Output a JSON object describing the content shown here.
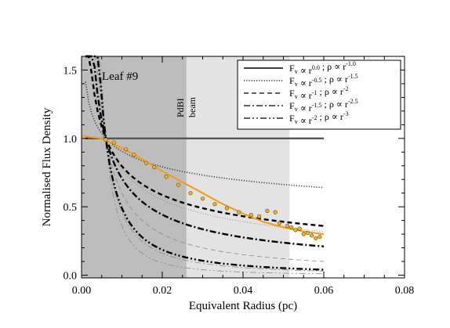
{
  "chart_data": {
    "type": "line",
    "title": "",
    "annotation": "Leaf #9",
    "xlabel": "Equivalent Radius (pc)",
    "ylabel": "Normalised Flux Density",
    "xlim": [
      0.0,
      0.08
    ],
    "ylim": [
      -0.02,
      1.6
    ],
    "xticks": [
      "0.00",
      "0.02",
      "0.04",
      "0.06",
      "0.08"
    ],
    "yticks": [
      "0.0",
      "0.5",
      "1.0",
      "1.5"
    ],
    "legend_position": "top-right",
    "shaded_regions": [
      {
        "label": "",
        "x": [
          0.0,
          0.026
        ],
        "color": "#bdbdbd"
      },
      {
        "label": "PdBI beam",
        "x": [
          0.026,
          0.0515
        ],
        "color": "#e3e3e3"
      }
    ],
    "beam_label": [
      "PdBI",
      "beam"
    ],
    "model_x_range": [
      0.0,
      0.06
    ],
    "series": [
      {
        "name": "F_v ∝ r^0.0 ; ρ ∝ r^-1.0",
        "style": "solid",
        "y_at_end": 1.0,
        "faint_y_at_end": 1.0
      },
      {
        "name": "F_v ∝ r^-0.5 ; ρ ∝ r^-1.5",
        "style": "dotted",
        "y_at_end": 0.64,
        "faint_y_at_end": 0.32
      },
      {
        "name": "F_v ∝ r^-1 ; ρ ∝ r^-2",
        "style": "dashed",
        "y_at_end": 0.36,
        "faint_y_at_end": 0.1
      },
      {
        "name": "F_v ∝ r^-1.5 ; ρ ∝ r^-2.5",
        "style": "dash-dot",
        "y_at_end": 0.21,
        "faint_y_at_end": 0.03
      },
      {
        "name": "F_v ∝ r^-2 ; ρ ∝ r^-3",
        "style": "dash-dot-dot",
        "y_at_end": 0.04,
        "faint_y_at_end": 0.01
      }
    ],
    "legend_entries": [
      {
        "style": "solid",
        "f": "F",
        "f_sub": "v",
        "f_exp": "0.0",
        "rho_exp": "-1.0"
      },
      {
        "style": "dotted",
        "f": "F",
        "f_sub": "v",
        "f_exp": "-0.5",
        "rho_exp": "-1.5"
      },
      {
        "style": "dashed",
        "f": "F",
        "f_sub": "v",
        "f_exp": "-1",
        "rho_exp": "-2"
      },
      {
        "style": "dash-dot",
        "f": "F",
        "f_sub": "v",
        "f_exp": "-1.5",
        "rho_exp": "-2.5"
      },
      {
        "style": "dash-dot-dot",
        "f": "F",
        "f_sub": "v",
        "f_exp": "-2",
        "rho_exp": "-3"
      }
    ],
    "observed_fit": {
      "color": "#f0a020",
      "x": [
        0.0,
        0.005,
        0.01,
        0.015,
        0.02,
        0.025,
        0.03,
        0.035,
        0.04,
        0.045,
        0.05,
        0.055,
        0.06
      ],
      "y": [
        1.02,
        1.0,
        0.93,
        0.85,
        0.76,
        0.68,
        0.6,
        0.52,
        0.45,
        0.39,
        0.35,
        0.32,
        0.3
      ]
    },
    "data_points": {
      "color": "#f0b030",
      "x": [
        0.006,
        0.008,
        0.011,
        0.013,
        0.016,
        0.018,
        0.021,
        0.024,
        0.027,
        0.03,
        0.033,
        0.036,
        0.039,
        0.042,
        0.044,
        0.046,
        0.048,
        0.049,
        0.051,
        0.052,
        0.053,
        0.054,
        0.055,
        0.056,
        0.057,
        0.058,
        0.059
      ],
      "y": [
        0.99,
        0.97,
        0.92,
        0.88,
        0.82,
        0.79,
        0.72,
        0.66,
        0.6,
        0.56,
        0.52,
        0.49,
        0.46,
        0.44,
        0.43,
        0.47,
        0.46,
        0.38,
        0.36,
        0.35,
        0.33,
        0.34,
        0.3,
        0.31,
        0.29,
        0.27,
        0.28
      ]
    }
  }
}
